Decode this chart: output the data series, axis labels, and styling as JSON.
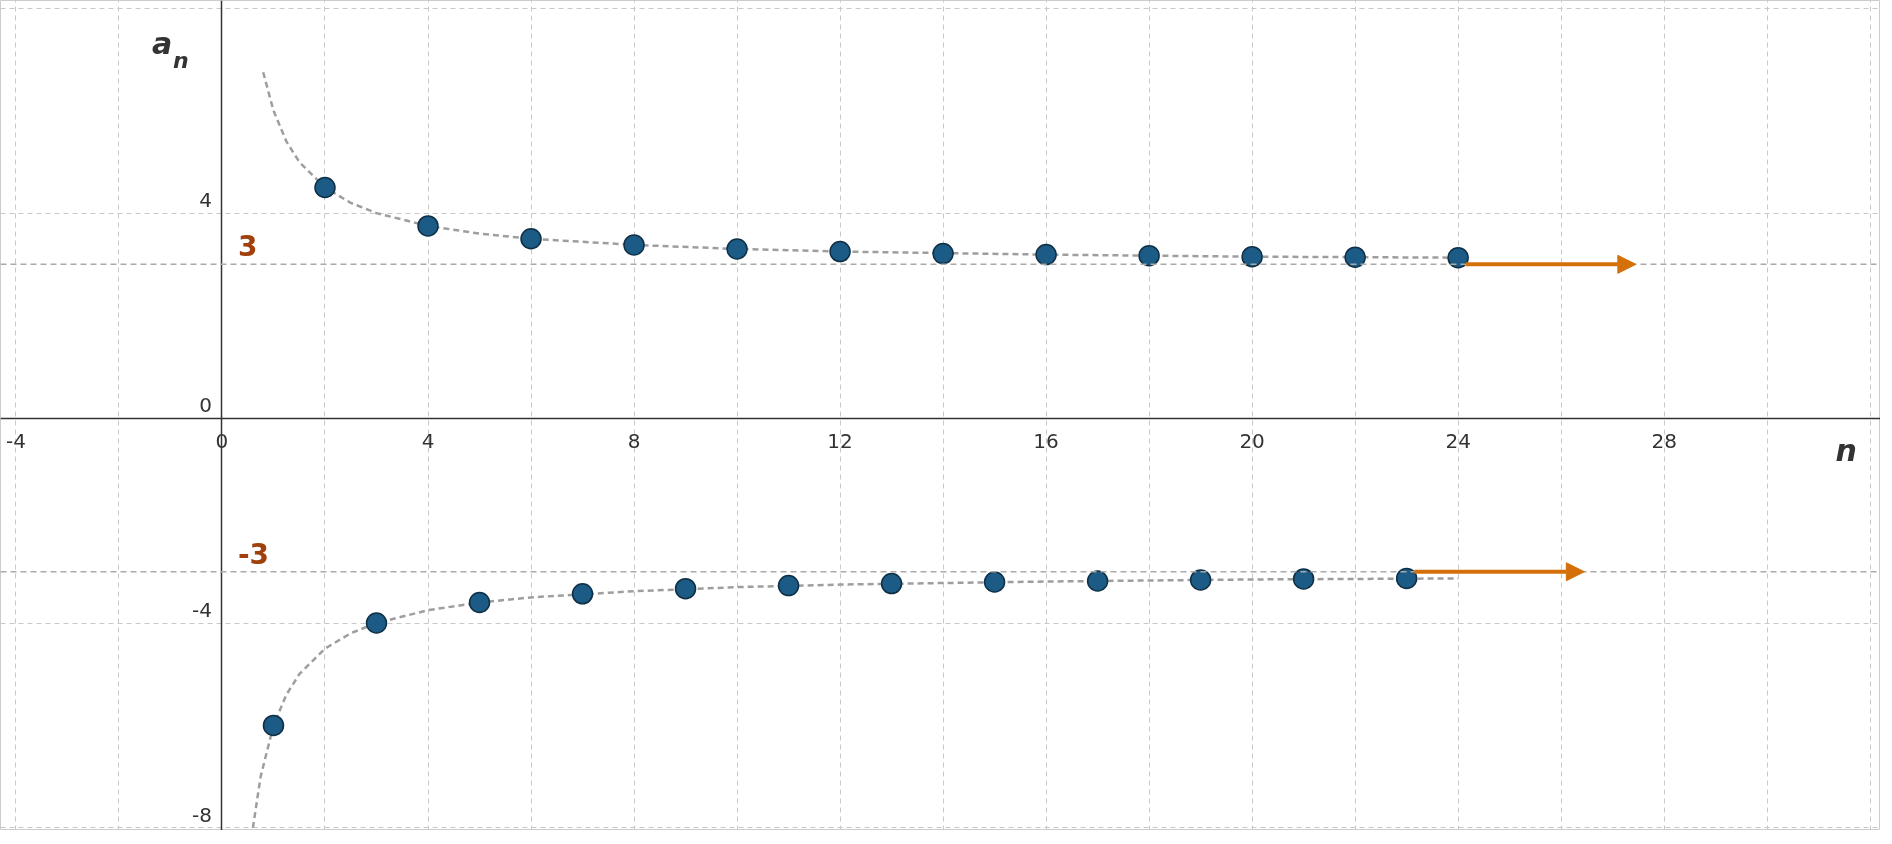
{
  "chart_data": {
    "type": "scatter",
    "xlabel": "n",
    "ylabel": "a$_{n}$",
    "xlim": [
      -4.3,
      32.2
    ],
    "ylim": [
      -8.05,
      8.15
    ],
    "xticks": [
      -4,
      {
        "value": -2,
        "label": null
      },
      0,
      {
        "value": 2,
        "label": null
      },
      4,
      {
        "value": 6,
        "label": null
      },
      8,
      {
        "value": 10,
        "label": null
      },
      12,
      {
        "value": 14,
        "label": null
      },
      16,
      {
        "value": 18,
        "label": null
      },
      20,
      {
        "value": 22,
        "label": null
      },
      24,
      {
        "value": 26,
        "label": null
      },
      28,
      {
        "value": 30,
        "label": null
      },
      {
        "value": 32,
        "label": null
      }
    ],
    "yticks": [
      -8,
      -4,
      0,
      4,
      {
        "value": 8,
        "label": null
      }
    ],
    "grid": true,
    "marker": "circle",
    "series": [
      {
        "type": "line",
        "color": "#9e9e9e",
        "line_style": "dashed",
        "marker": "none",
        "x": [
          0.8,
          1,
          1.25,
          1.5,
          2,
          2.5,
          3,
          4,
          5,
          6,
          8,
          10,
          12,
          16,
          20,
          24
        ],
        "values": [
          6.75,
          6,
          5.4,
          5,
          4.5,
          4.2,
          4,
          3.75,
          3.6,
          3.5,
          3.38,
          3.3,
          3.25,
          3.19,
          3.15,
          3.13
        ]
      },
      {
        "type": "line",
        "color": "#9e9e9e",
        "line_style": "dashed",
        "marker": "none",
        "x": [
          0.6,
          0.75,
          1,
          1.25,
          1.5,
          2,
          2.5,
          3,
          4,
          5,
          6,
          8,
          10,
          12,
          16,
          20,
          24
        ],
        "values": [
          -8,
          -7,
          -6,
          -5.4,
          -5,
          -4.5,
          -4.2,
          -4,
          -3.75,
          -3.6,
          -3.5,
          -3.38,
          -3.3,
          -3.25,
          -3.19,
          -3.15,
          -3.13
        ]
      },
      {
        "color": "#1b5b85",
        "x": [
          1,
          2,
          3,
          4,
          5,
          6,
          7,
          8,
          9,
          10,
          11,
          12,
          13,
          14,
          15,
          16,
          17,
          18,
          19,
          20,
          21,
          22,
          23,
          24
        ],
        "values": [
          -6,
          4.5,
          -4,
          3.75,
          -3.6,
          3.5,
          -3.43,
          3.38,
          -3.33,
          3.3,
          -3.27,
          3.25,
          -3.23,
          3.21,
          -3.2,
          3.19,
          -3.18,
          3.17,
          -3.16,
          3.15,
          -3.14,
          3.14,
          -3.13,
          3.13
        ]
      }
    ],
    "ref_lines": [
      {
        "axis": "y",
        "value": 3,
        "label": "3",
        "color": "#aaaaaa",
        "line_style": "dashed"
      },
      {
        "axis": "y",
        "value": -3,
        "label": "-3",
        "color": "#aaaaaa",
        "line_style": "dashed"
      }
    ]
  }
}
